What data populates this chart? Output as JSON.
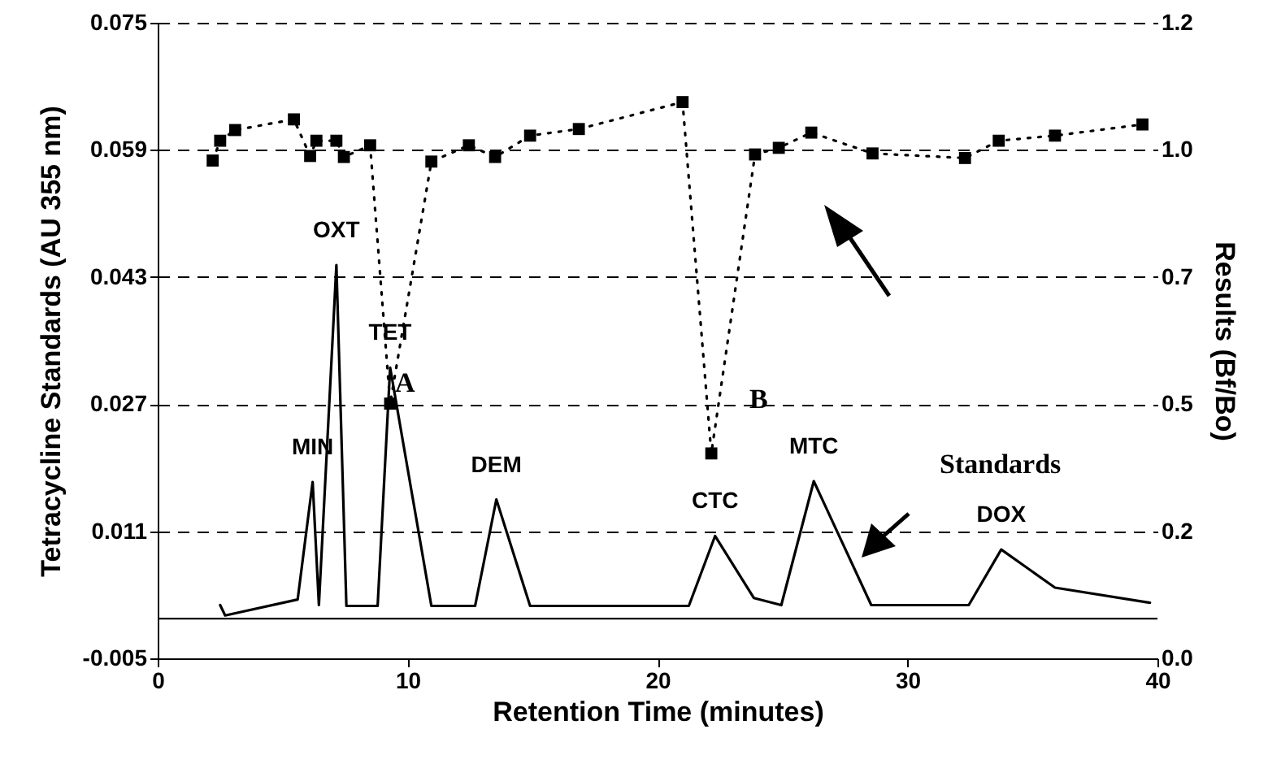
{
  "chart_data": {
    "type": "line",
    "xlabel": "Retention Time (minutes)",
    "ylabel": "Tetracycline Standards (AU 355 nm)",
    "y2label": "Results (Bf/Bo)",
    "xlim": [
      0,
      40
    ],
    "xticks": [
      0,
      10,
      20,
      30,
      40
    ],
    "ylim": [
      -0.005,
      0.075
    ],
    "yticks": [
      -0.005,
      0.011,
      0.027,
      0.043,
      0.059,
      0.075
    ],
    "y2lim": [
      0,
      1.25
    ],
    "y2ticks": [
      {
        "value": 0,
        "label": "0.0"
      },
      {
        "value": 0.25,
        "label": "0.2"
      },
      {
        "value": 0.5,
        "label": "0.5"
      },
      {
        "value": 0.75,
        "label": "0.7"
      },
      {
        "value": 1,
        "label": "1.0"
      },
      {
        "value": 1.25,
        "label": "1.2"
      }
    ],
    "grid": "y",
    "series": [
      {
        "color": "#000000",
        "marker": "none",
        "line_style": "solid",
        "x": [
          2.5,
          2.7,
          5.6,
          6.2,
          6.45,
          7.15,
          7.55,
          8.8,
          9.3,
          10.95,
          12.7,
          13.55,
          14.9,
          21.25,
          22.3,
          23.85,
          24.95,
          26.25,
          28.55,
          32.45,
          33.75,
          35.9,
          39.7
        ],
        "values": [
          0.0017,
          0.0004,
          0.0024,
          0.0172,
          0.0017,
          0.0445,
          0.0016,
          0.0016,
          0.0316,
          0.0016,
          0.0016,
          0.015,
          0.0016,
          0.0016,
          0.0104,
          0.0026,
          0.0017,
          0.0173,
          0.0017,
          0.0017,
          0.0087,
          0.0039,
          0.002
        ]
      },
      {
        "color": "#000000",
        "marker": "square",
        "line_style": "dotted",
        "axis": "y2",
        "x": [
          2.2,
          2.5,
          3.1,
          5.45,
          6.1,
          6.35,
          7.15,
          7.45,
          8.5,
          9.3,
          10.95,
          12.45,
          13.5,
          14.9,
          16.85,
          21.0,
          22.15,
          23.9,
          24.85,
          26.15,
          28.6,
          32.3,
          33.65,
          35.9,
          39.4
        ],
        "values": [
          0.979,
          1.018,
          1.039,
          1.06,
          0.988,
          1.018,
          1.018,
          0.986,
          1.009,
          0.501,
          0.977,
          1.009,
          0.986,
          1.028,
          1.041,
          1.094,
          0.403,
          0.991,
          1.004,
          1.034,
          0.993,
          0.984,
          1.018,
          1.028,
          1.05
        ]
      }
    ],
    "ref_lines": [
      {
        "axis": "y",
        "value": 0,
        "line_style": "solid"
      }
    ],
    "annotations": [
      {
        "text": "MIN",
        "x": 6.2,
        "y": 0.0172
      },
      {
        "text": "OXT",
        "x": 7.15,
        "y": 0.0445
      },
      {
        "text": "TET",
        "x": 9.3,
        "y": 0.0316
      },
      {
        "text": "DEM",
        "x": 13.55,
        "y": 0.015
      },
      {
        "text": "CTC",
        "x": 22.3,
        "y": 0.0104
      },
      {
        "text": "MTC",
        "x": 26.25,
        "y": 0.0173
      },
      {
        "text": "DOX",
        "x": 33.75,
        "y": 0.0087
      },
      "A",
      "B",
      "Standards"
    ]
  }
}
